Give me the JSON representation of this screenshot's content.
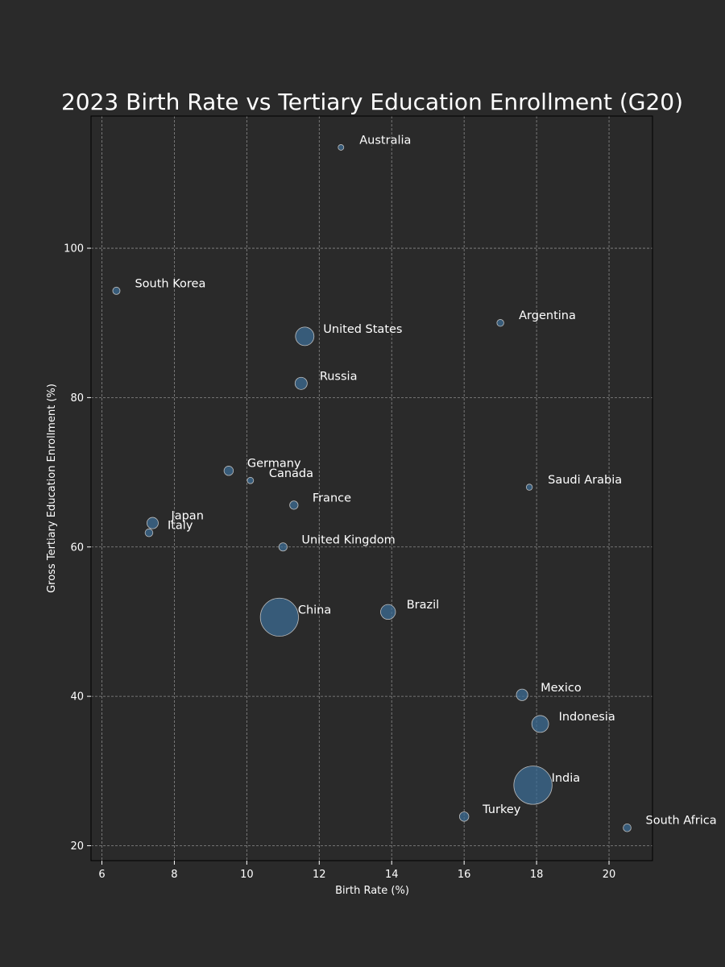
{
  "chart_data": {
    "type": "scatter",
    "title": "2023 Birth Rate vs Tertiary Education Enrollment (G20)",
    "xlabel": "Birth Rate (%)",
    "ylabel": "Gross Tertiary Education Enrollment (%)",
    "xlim": [
      5.7,
      21.2
    ],
    "ylim": [
      18,
      117.7
    ],
    "xticks": [
      6,
      8,
      10,
      12,
      14,
      16,
      18,
      20
    ],
    "yticks": [
      20,
      40,
      60,
      80,
      100
    ],
    "grid": true,
    "point_color": "#3d6f99",
    "background_color": "#2a2a2a",
    "bubble_size_encodes": "population",
    "points": [
      {
        "label": "Australia",
        "x": 12.6,
        "y": 113.5,
        "size": 26
      },
      {
        "label": "South Korea",
        "x": 6.4,
        "y": 94.3,
        "size": 52
      },
      {
        "label": "Argentina",
        "x": 17.0,
        "y": 90.0,
        "size": 46
      },
      {
        "label": "United States",
        "x": 11.6,
        "y": 88.2,
        "size": 333
      },
      {
        "label": "Russia",
        "x": 11.5,
        "y": 81.9,
        "size": 144
      },
      {
        "label": "Germany",
        "x": 9.5,
        "y": 70.2,
        "size": 84
      },
      {
        "label": "Canada",
        "x": 10.1,
        "y": 68.9,
        "size": 39
      },
      {
        "label": "Saudi Arabia",
        "x": 17.8,
        "y": 68.0,
        "size": 36
      },
      {
        "label": "France",
        "x": 11.3,
        "y": 65.6,
        "size": 68
      },
      {
        "label": "Japan",
        "x": 7.4,
        "y": 63.2,
        "size": 125
      },
      {
        "label": "Italy",
        "x": 7.3,
        "y": 61.9,
        "size": 59
      },
      {
        "label": "United Kingdom",
        "x": 11.0,
        "y": 60.0,
        "size": 67
      },
      {
        "label": "China",
        "x": 10.9,
        "y": 50.6,
        "size": 1410
      },
      {
        "label": "Brazil",
        "x": 13.9,
        "y": 51.3,
        "size": 215
      },
      {
        "label": "Mexico",
        "x": 17.6,
        "y": 40.2,
        "size": 128
      },
      {
        "label": "Indonesia",
        "x": 18.1,
        "y": 36.3,
        "size": 276
      },
      {
        "label": "India",
        "x": 17.9,
        "y": 28.1,
        "size": 1420
      },
      {
        "label": "Turkey",
        "x": 16.0,
        "y": 23.9,
        "size": 85
      },
      {
        "label": "South Africa",
        "x": 20.5,
        "y": 22.4,
        "size": 60
      }
    ]
  }
}
